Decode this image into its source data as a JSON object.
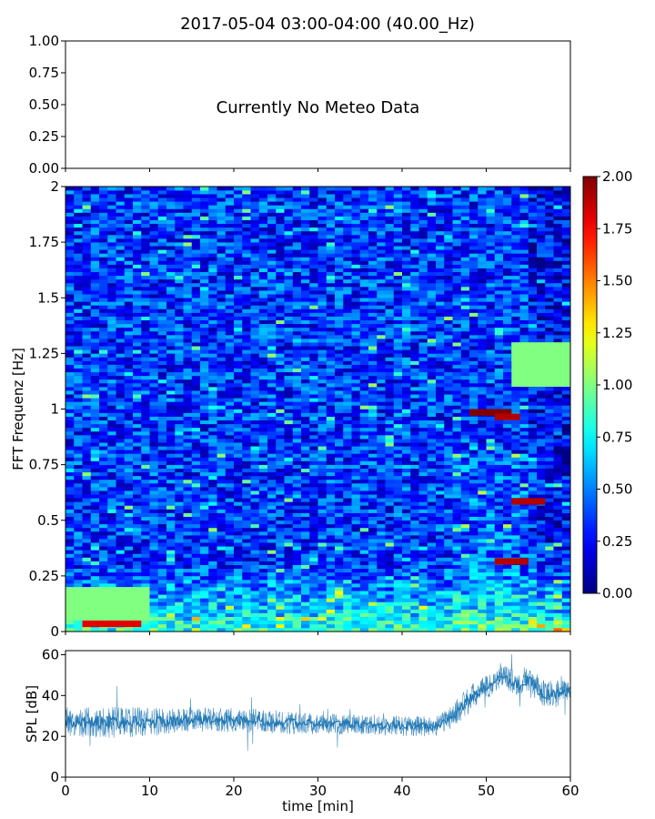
{
  "chart_data": [
    {
      "type": "text-panel",
      "title": "2017-05-04 03:00-04:00 (40.00_Hz)",
      "message": "Currently No Meteo Data",
      "ylim": [
        0,
        1
      ],
      "yticks": [
        "0.00",
        "0.25",
        "0.50",
        "0.75",
        "1.00"
      ],
      "yticks_values": [
        0,
        0.25,
        0.5,
        0.75,
        1.0
      ],
      "xlim": [
        0,
        60
      ]
    },
    {
      "type": "heatmap",
      "ylabel": "FFT Frequenz [Hz]",
      "xlim": [
        0,
        60
      ],
      "ylim": [
        0,
        2
      ],
      "yticks": [
        "0",
        "0.25",
        "0.5",
        "0.75",
        "1",
        "1.25",
        "1.5",
        "1.75",
        "2"
      ],
      "yticks_values": [
        0,
        0.25,
        0.5,
        0.75,
        1,
        1.25,
        1.5,
        1.75,
        2
      ],
      "colorbar": {
        "range": [
          0,
          2
        ],
        "ticks": [
          "0.00",
          "0.25",
          "0.50",
          "0.75",
          "1.00",
          "1.25",
          "1.50",
          "1.75",
          "2.00"
        ],
        "ticks_values": [
          0,
          0.25,
          0.5,
          0.75,
          1,
          1.25,
          1.5,
          1.75,
          2
        ],
        "colormap": "jet"
      },
      "features": [
        {
          "t": [
            48,
            53
          ],
          "f": [
            0.97,
            1.0
          ],
          "value": 2.0
        },
        {
          "t": [
            51,
            54
          ],
          "f": [
            0.95,
            0.98
          ],
          "value": 1.9
        },
        {
          "t": [
            53,
            57
          ],
          "f": [
            0.57,
            0.6
          ],
          "value": 1.9
        },
        {
          "t": [
            51,
            55
          ],
          "f": [
            0.3,
            0.33
          ],
          "value": 1.9
        },
        {
          "t": [
            2,
            9
          ],
          "f": [
            0.02,
            0.05
          ],
          "value": 1.8
        },
        {
          "t": [
            53,
            60
          ],
          "f": [
            1.1,
            1.3
          ],
          "value": 1.0
        },
        {
          "t": [
            0,
            10
          ],
          "f": [
            0.05,
            0.2
          ],
          "value": 1.0
        }
      ]
    },
    {
      "type": "line",
      "ylabel": "SPL [dB]",
      "xlabel": "time [min]",
      "xlim": [
        0,
        60
      ],
      "ylim": [
        0,
        62
      ],
      "xticks": [
        "0",
        "10",
        "20",
        "30",
        "40",
        "50",
        "60"
      ],
      "xticks_values": [
        0,
        10,
        20,
        30,
        40,
        50,
        60
      ],
      "yticks": [
        "0",
        "20",
        "40",
        "60"
      ],
      "yticks_values": [
        0,
        20,
        40,
        60
      ],
      "series_color": "#1f77b4",
      "envelope": [
        {
          "t": 0,
          "mean": 27,
          "spread": 7
        },
        {
          "t": 5,
          "mean": 27,
          "spread": 8
        },
        {
          "t": 10,
          "mean": 27,
          "spread": 7
        },
        {
          "t": 15,
          "mean": 28,
          "spread": 6
        },
        {
          "t": 20,
          "mean": 28,
          "spread": 6
        },
        {
          "t": 25,
          "mean": 27,
          "spread": 6
        },
        {
          "t": 30,
          "mean": 26,
          "spread": 5
        },
        {
          "t": 35,
          "mean": 26,
          "spread": 5
        },
        {
          "t": 40,
          "mean": 25,
          "spread": 5
        },
        {
          "t": 44,
          "mean": 25,
          "spread": 5
        },
        {
          "t": 46,
          "mean": 30,
          "spread": 6
        },
        {
          "t": 48,
          "mean": 38,
          "spread": 7
        },
        {
          "t": 50,
          "mean": 44,
          "spread": 6
        },
        {
          "t": 52,
          "mean": 50,
          "spread": 6
        },
        {
          "t": 54,
          "mean": 45,
          "spread": 6
        },
        {
          "t": 55,
          "mean": 48,
          "spread": 6
        },
        {
          "t": 57,
          "mean": 40,
          "spread": 7
        },
        {
          "t": 60,
          "mean": 42,
          "spread": 6
        }
      ]
    }
  ]
}
